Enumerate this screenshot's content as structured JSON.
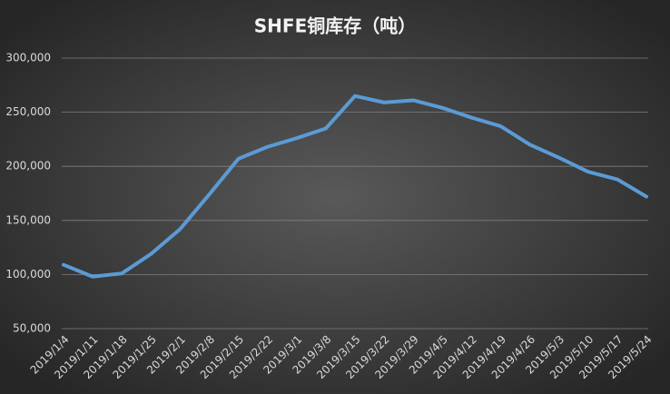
{
  "chart_data": {
    "type": "line",
    "title": "SHFE铜库存（吨）",
    "categories": [
      "2019/1/4",
      "2019/1/11",
      "2019/1/18",
      "2019/1/25",
      "2019/2/1",
      "2019/2/8",
      "2019/2/15",
      "2019/2/22",
      "2019/3/1",
      "2019/3/8",
      "2019/3/15",
      "2019/3/22",
      "2019/3/29",
      "2019/4/5",
      "2019/4/12",
      "2019/4/19",
      "2019/4/26",
      "2019/5/3",
      "2019/5/10",
      "2019/5/17",
      "2019/5/24"
    ],
    "values": [
      109000,
      98000,
      101000,
      119000,
      142000,
      174000,
      207000,
      218000,
      226000,
      235000,
      265000,
      259000,
      261000,
      254000,
      245000,
      237000,
      220000,
      208000,
      195000,
      188000,
      172000
    ],
    "color": "#5b9bd5",
    "ylim": [
      50000,
      300000
    ],
    "yticks": [
      {
        "value": 50000,
        "label": "50,000"
      },
      {
        "value": 100000,
        "label": "100,000"
      },
      {
        "value": 150000,
        "label": "150,000"
      },
      {
        "value": 200000,
        "label": "200,000"
      },
      {
        "value": 250000,
        "label": "250,000"
      },
      {
        "value": 300000,
        "label": "300,000"
      }
    ],
    "grid": true
  }
}
